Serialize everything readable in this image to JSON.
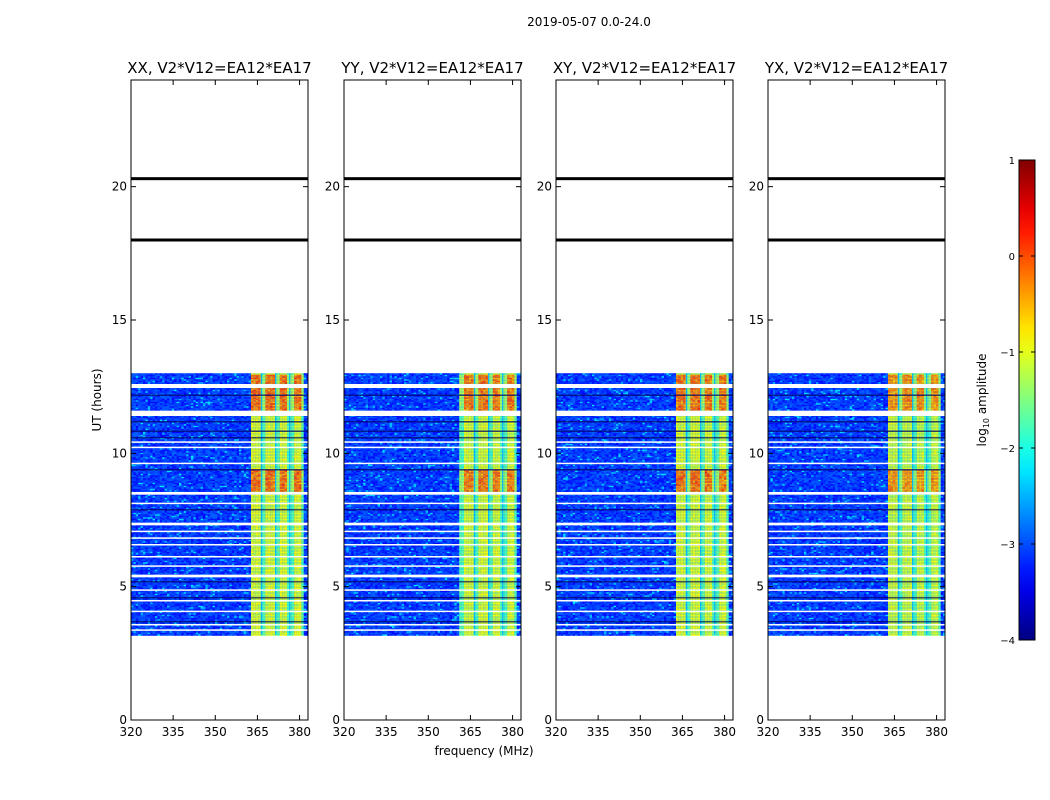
{
  "figure": {
    "suptitle": "2019-05-07 0.0-24.0",
    "xlabel": "frequency (MHz)",
    "ylabel": "UT (hours)",
    "colorbar_label": "log",
    "colorbar_label_sub": "10",
    "colorbar_label_rest": " amplitude"
  },
  "chart_data": {
    "type": "heatmap",
    "panels": [
      {
        "title": "XX, V2*V12=EA12*EA17",
        "band_strength": 1.0,
        "band_start_mhz": 362
      },
      {
        "title": "YY, V2*V12=EA12*EA17",
        "band_strength": 0.9,
        "band_start_mhz": 361
      },
      {
        "title": "XY, V2*V12=EA12*EA17",
        "band_strength": 0.95,
        "band_start_mhz": 362
      },
      {
        "title": "YX, V2*V12=EA12*EA17",
        "band_strength": 0.7,
        "band_start_mhz": 362
      }
    ],
    "xlim": [
      320,
      383
    ],
    "ylim": [
      0,
      24
    ],
    "xticks": [
      320,
      335,
      350,
      365,
      380
    ],
    "yticks": [
      0,
      5,
      10,
      15,
      20
    ],
    "data_time_range_hours": [
      3.2,
      13.0
    ],
    "band_mhz": [
      362,
      381
    ],
    "bright_channels_mhz": [
      [
        362.5,
        365.5
      ],
      [
        367.5,
        370.5
      ],
      [
        372.5,
        375.5
      ],
      [
        377.5,
        380.5
      ]
    ],
    "flag_gap_hours": [
      [
        3.35,
        3.4
      ],
      [
        3.55,
        3.6
      ],
      [
        4.05,
        4.1
      ],
      [
        4.45,
        4.5
      ],
      [
        4.85,
        4.9
      ],
      [
        5.35,
        5.45
      ],
      [
        5.75,
        5.8
      ],
      [
        6.1,
        6.15
      ],
      [
        6.55,
        6.6
      ],
      [
        6.8,
        6.85
      ],
      [
        7.05,
        7.1
      ],
      [
        7.3,
        7.4
      ],
      [
        8.1,
        8.15
      ],
      [
        8.45,
        8.55
      ],
      [
        9.6,
        9.65
      ],
      [
        10.2,
        10.25
      ],
      [
        10.4,
        10.45
      ],
      [
        11.4,
        11.6
      ],
      [
        12.45,
        12.6
      ]
    ],
    "dark_line_hours": [
      3.7,
      4.6,
      5.2,
      7.9,
      9.4,
      10.6,
      10.85,
      11.2,
      12.2
    ],
    "bright_burst_hours": [
      [
        8.6,
        9.4
      ],
      [
        11.6,
        13.0
      ]
    ],
    "black_line_hours": [
      18.0,
      20.3
    ],
    "colorbar": {
      "range": [
        -4,
        1
      ],
      "ticks": [
        1,
        0,
        -1,
        -2,
        -3,
        -4
      ],
      "tick_labels": [
        "1",
        "0",
        "−1",
        "−2",
        "−3",
        "−4"
      ],
      "colormap": "jet"
    }
  }
}
